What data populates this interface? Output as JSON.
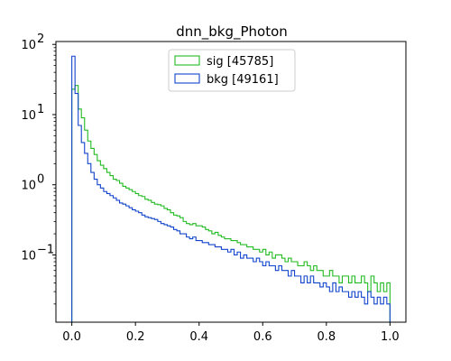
{
  "chart_data": {
    "type": "histogram",
    "title": "dnn_bkg_Photon",
    "xlabel": "",
    "ylabel": "",
    "xlim": [
      -0.05,
      1.05
    ],
    "ylim": [
      0.011,
      110
    ],
    "yscale": "log",
    "grid": false,
    "legend_position": "top-center",
    "x_ticks": [
      {
        "value": 0.0,
        "label": "0.0"
      },
      {
        "value": 0.2,
        "label": "0.2"
      },
      {
        "value": 0.4,
        "label": "0.4"
      },
      {
        "value": 0.6,
        "label": "0.6"
      },
      {
        "value": 0.8,
        "label": "0.8"
      },
      {
        "value": 1.0,
        "label": "1.0"
      }
    ],
    "y_ticks": [
      {
        "value": 0.1,
        "label": "10",
        "exp": "−1"
      },
      {
        "value": 1,
        "label": "10",
        "exp": "0"
      },
      {
        "value": 10,
        "label": "10",
        "exp": "1"
      },
      {
        "value": 100,
        "label": "10",
        "exp": "2"
      }
    ],
    "bin_edges_start": 0.0,
    "bin_width": 0.01,
    "series": [
      {
        "name": "sig [45785]",
        "color": "#22bb22",
        "values": [
          23.0,
          26.0,
          12.0,
          9.0,
          6.0,
          4.2,
          3.3,
          2.7,
          2.2,
          1.9,
          1.7,
          1.5,
          1.35,
          1.2,
          1.15,
          1.05,
          0.95,
          0.9,
          0.85,
          0.8,
          0.75,
          0.7,
          0.68,
          0.62,
          0.6,
          0.56,
          0.53,
          0.52,
          0.5,
          0.46,
          0.44,
          0.4,
          0.37,
          0.36,
          0.34,
          0.3,
          0.28,
          0.27,
          0.28,
          0.26,
          0.26,
          0.25,
          0.23,
          0.22,
          0.2,
          0.21,
          0.19,
          0.18,
          0.17,
          0.17,
          0.16,
          0.16,
          0.15,
          0.14,
          0.14,
          0.13,
          0.13,
          0.12,
          0.12,
          0.11,
          0.12,
          0.1,
          0.11,
          0.09,
          0.1,
          0.1,
          0.09,
          0.08,
          0.09,
          0.08,
          0.08,
          0.07,
          0.07,
          0.08,
          0.07,
          0.06,
          0.07,
          0.06,
          0.06,
          0.05,
          0.05,
          0.06,
          0.05,
          0.05,
          0.04,
          0.05,
          0.05,
          0.04,
          0.05,
          0.04,
          0.04,
          0.05,
          0.04,
          0.03,
          0.05,
          0.04,
          0.03,
          0.04,
          0.03,
          0.04
        ]
      },
      {
        "name": "bkg [49161]",
        "color": "#1144cc",
        "values": [
          68.0,
          20.0,
          7.0,
          4.0,
          2.8,
          2.0,
          1.5,
          1.2,
          1.0,
          0.9,
          0.8,
          0.75,
          0.7,
          0.65,
          0.6,
          0.55,
          0.53,
          0.5,
          0.47,
          0.44,
          0.42,
          0.4,
          0.37,
          0.35,
          0.34,
          0.33,
          0.32,
          0.3,
          0.28,
          0.27,
          0.26,
          0.25,
          0.23,
          0.22,
          0.2,
          0.2,
          0.18,
          0.17,
          0.18,
          0.16,
          0.16,
          0.15,
          0.15,
          0.14,
          0.14,
          0.13,
          0.13,
          0.12,
          0.12,
          0.11,
          0.12,
          0.1,
          0.11,
          0.09,
          0.1,
          0.09,
          0.09,
          0.08,
          0.09,
          0.08,
          0.07,
          0.08,
          0.07,
          0.07,
          0.06,
          0.07,
          0.06,
          0.06,
          0.05,
          0.06,
          0.05,
          0.05,
          0.04,
          0.05,
          0.04,
          0.05,
          0.04,
          0.04,
          0.035,
          0.04,
          0.035,
          0.03,
          0.04,
          0.03,
          0.035,
          0.03,
          0.03,
          0.025,
          0.03,
          0.025,
          0.03,
          0.025,
          0.02,
          0.03,
          0.025,
          0.02,
          0.025,
          0.02,
          0.025,
          0.02
        ]
      }
    ]
  }
}
